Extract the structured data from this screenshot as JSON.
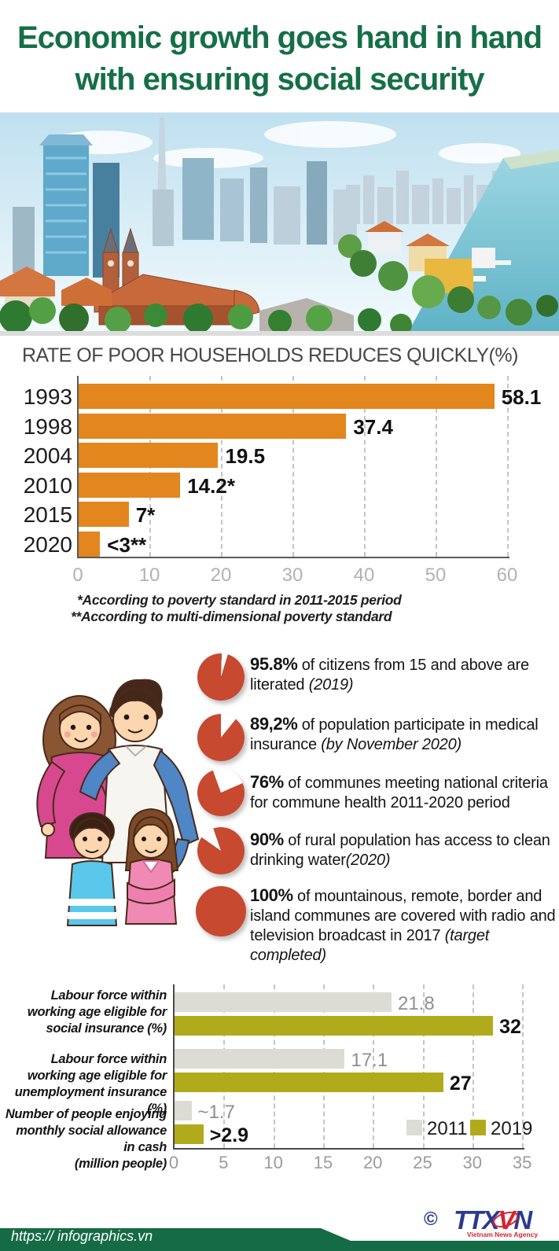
{
  "title": {
    "line1": "Economic growth goes hand in hand",
    "line2": "with ensuring social security"
  },
  "chart_data": [
    {
      "type": "bar",
      "title": "RATE OF POOR HOUSEHOLDS REDUCES QUICKLY(%)",
      "orientation": "horizontal",
      "categories": [
        "1993",
        "1998",
        "2004",
        "2010",
        "2015",
        "2020"
      ],
      "values": [
        58.1,
        37.4,
        19.5,
        14.2,
        7,
        3
      ],
      "value_labels": [
        "58.1",
        "37.4",
        "19.5",
        "14.2*",
        "7*",
        "<3**"
      ],
      "xlim": [
        0,
        60
      ],
      "xticks": [
        0,
        10,
        20,
        30,
        40,
        50,
        60
      ],
      "bar_color": "#e2861d",
      "grid": "dashed-vertical",
      "footnotes": [
        "*According to poverty standard in 2011-2015 period",
        "**According to multi-dimensional poverty standard"
      ]
    },
    {
      "type": "pie",
      "pie_color": "#c7492f",
      "items": [
        {
          "pct": 95.8,
          "pct_label": "95.8%",
          "text": "of citizens from 15 and above are literated",
          "note": "(2019)",
          "space_before_note": true,
          "gap_from_deg": 2
        },
        {
          "pct": 89.2,
          "pct_label": "89,2%",
          "text": "of population participate in medical insurance",
          "note": "(by November 2020)",
          "space_before_note": true,
          "gap_from_deg": 0
        },
        {
          "pct": 76,
          "pct_label": "76%",
          "text": "of communes meeting national criteria for commune health 2011-2020 period",
          "note": "",
          "space_before_note": false,
          "gap_from_deg": -20
        },
        {
          "pct": 90,
          "pct_label": "90%",
          "text": "of rural population has access to clean drinking water",
          "note": "(2020)",
          "space_before_note": false,
          "gap_from_deg": -55
        },
        {
          "pct": 100,
          "pct_label": "100%",
          "text": "of mountainous, remote, border and island communes are covered with radio and television broadcast in 2017",
          "note": "(target completed)",
          "space_before_note": true,
          "gap_from_deg": 0
        }
      ]
    },
    {
      "type": "bar",
      "orientation": "horizontal-grouped",
      "categories": [
        [
          "Labour force within",
          "working age eligible for",
          "social insurance (%)"
        ],
        [
          "Labour force  within",
          "working age eligible for",
          "unemployment insurance (%)"
        ],
        [
          "Number of people enjoying",
          "monthly social allowance in cash",
          "(million people)"
        ]
      ],
      "series": [
        {
          "name": "2011",
          "color": "#dcdcd4",
          "values": [
            21.8,
            17.1,
            1.7
          ],
          "value_labels": [
            "21.8",
            "17.1",
            "~1.7"
          ]
        },
        {
          "name": "2019",
          "color": "#b1ab1b",
          "values": [
            32,
            27,
            2.9
          ],
          "value_labels": [
            "32",
            "27",
            ">2.9"
          ]
        }
      ],
      "xlim": [
        0,
        35
      ],
      "xticks": [
        0,
        5,
        10,
        15,
        20,
        25,
        30,
        35
      ],
      "grid": "dashed-vertical",
      "legend_position": "bottom-right"
    }
  ],
  "footer": {
    "url": "https:// infographics.vn",
    "copyright": "©",
    "logo_t1": "TTX",
    "logo_v": "V",
    "logo_n": "N",
    "logo_caption": "Vietnam News Agency"
  }
}
